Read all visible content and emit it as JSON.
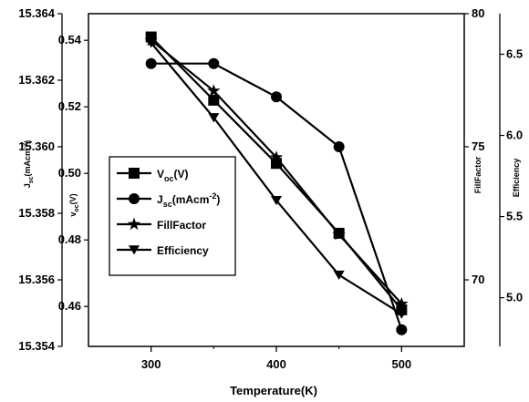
{
  "chart_data": {
    "type": "line",
    "xlabel": "Temperature(K)",
    "x": [
      300,
      350,
      400,
      450,
      500
    ],
    "x_ticks": [
      "300",
      "400",
      "500"
    ],
    "xlim": [
      250,
      550
    ],
    "axes": {
      "far_left": {
        "ylim": [
          15.354,
          15.364
        ],
        "ticks": [
          "15.354",
          "15.356",
          "15.358",
          "15.360",
          "15.362",
          "15.364"
        ],
        "label": "J sc (mAcm-2)"
      },
      "left": {
        "ylim": [
          0.448,
          0.548
        ],
        "ticks": [
          "0.46",
          "0.48",
          "0.50",
          "0.52",
          "0.54"
        ],
        "label": "Voc(V)"
      },
      "right": {
        "ylim": [
          67.5,
          80
        ],
        "ticks": [
          "70",
          "75",
          "80"
        ],
        "label": "FillFactor"
      },
      "far_right": {
        "ylim": [
          4.7,
          6.75
        ],
        "ticks": [
          "5.0",
          "5.5",
          "6.0",
          "6.5"
        ],
        "label": "Efficiency"
      }
    },
    "series": [
      {
        "name": "Voc(V)",
        "legend_main": "V",
        "legend_sub": "oc",
        "legend_rest": "(V)",
        "marker": "square",
        "axis": "left",
        "values": [
          0.541,
          0.522,
          0.503,
          0.482,
          0.459
        ]
      },
      {
        "name": "Jsc(mAcm-2)",
        "legend_main": "J",
        "legend_sub": "sc",
        "legend_rest": "(mAcm",
        "legend_sup": "-2",
        "legend_end": ")",
        "marker": "circle",
        "axis": "far_left",
        "values": [
          15.3625,
          15.3625,
          15.3615,
          15.36,
          15.3545
        ]
      },
      {
        "name": "FillFactor",
        "legend_main": "FillFactor",
        "marker": "star",
        "axis": "right",
        "values": [
          79.0,
          77.1,
          74.6,
          71.7,
          69.1
        ]
      },
      {
        "name": "Efficiency",
        "legend_main": "Efficiency",
        "marker": "triangle-down",
        "axis": "far_right",
        "values": [
          6.57,
          6.11,
          5.6,
          5.14,
          4.9
        ]
      }
    ]
  }
}
